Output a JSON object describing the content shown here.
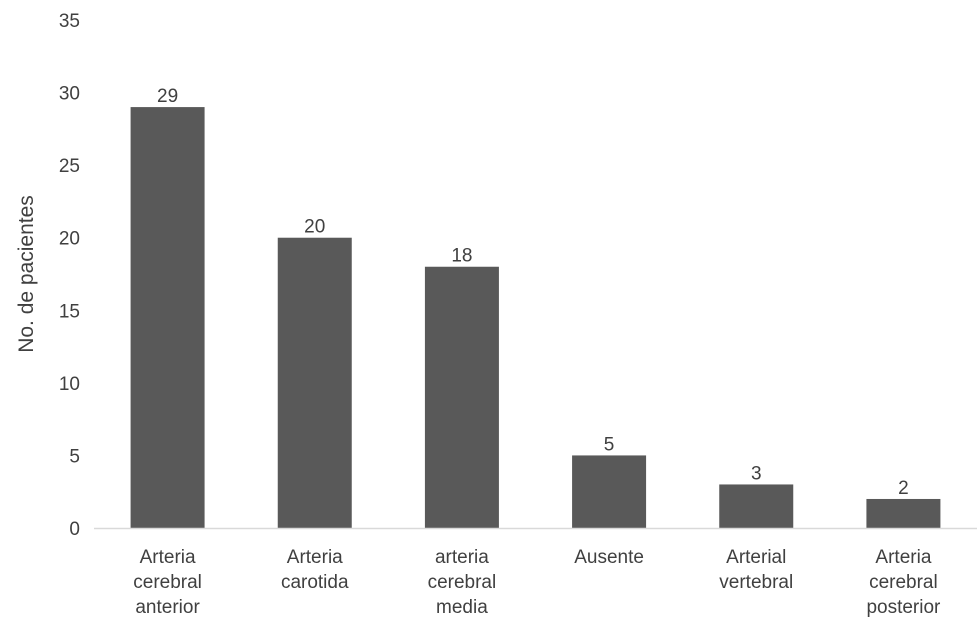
{
  "chart_data": {
    "type": "bar",
    "title": "",
    "xlabel": "",
    "ylabel": "No. de pacientes",
    "ylim": [
      0,
      35
    ],
    "yticks": [
      0,
      5,
      10,
      15,
      20,
      25,
      30,
      35
    ],
    "grid": false,
    "legend": "none",
    "categories": [
      [
        "Arteria",
        "cerebral",
        "anterior"
      ],
      [
        "Arteria",
        "carotida"
      ],
      [
        "arteria",
        "cerebral",
        "media"
      ],
      [
        "Ausente"
      ],
      [
        "Arterial",
        "vertebral"
      ],
      [
        "Arteria",
        "cerebral",
        "posterior"
      ]
    ],
    "values": [
      29,
      20,
      18,
      5,
      3,
      2
    ],
    "bar_color": "#595959",
    "axis_color": "#d9d9d9",
    "text_color": "#404040"
  }
}
